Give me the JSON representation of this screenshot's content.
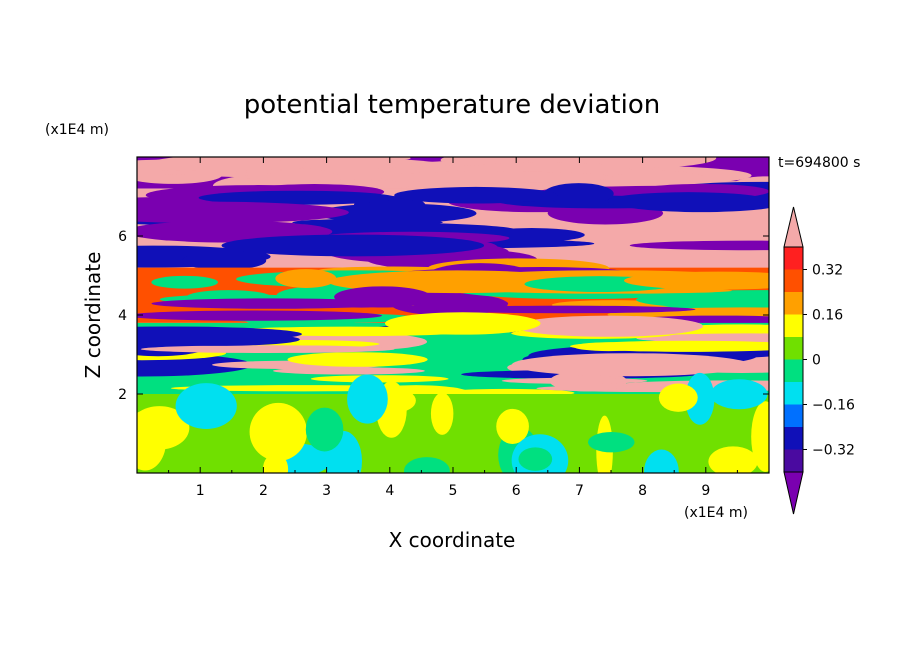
{
  "chart_data": {
    "type": "heatmap",
    "title": "potential temperature deviation",
    "time_label": "t=694800 s",
    "xlabel": "X coordinate",
    "ylabel": "Z coordinate",
    "x_unit": "(x1E4 m)",
    "y_unit": "(x1E4 m)",
    "xlim": [
      0,
      10
    ],
    "ylim": [
      0,
      8
    ],
    "x_ticks": [
      "1",
      "2",
      "3",
      "4",
      "5",
      "6",
      "7",
      "8",
      "9"
    ],
    "y_ticks": [
      "2",
      "4",
      "6"
    ],
    "colorbar": {
      "levels": [
        -0.4,
        -0.32,
        -0.24,
        -0.16,
        -0.08,
        0,
        0.08,
        0.16,
        0.24,
        0.32,
        0.4
      ],
      "tick_labels": [
        "0.32",
        "0.16",
        "0",
        "−0.16",
        "−0.32"
      ],
      "tick_values": [
        0.32,
        0.16,
        0,
        -0.16,
        -0.32
      ],
      "colors": [
        "#7a00b0",
        "#4a0aa0",
        "#1010b8",
        "#0070ff",
        "#00e0f0",
        "#00e080",
        "#70e000",
        "#ffff00",
        "#ffa000",
        "#ff5000",
        "#ff2020",
        "#f4a9a9"
      ],
      "extend": "both"
    },
    "field": [
      {
        "z": [
          7.2,
          8.0
        ],
        "level": "high",
        "colors": [
          "#7a00b0",
          "#f4a9a9"
        ]
      },
      {
        "z": [
          5.2,
          7.2
        ],
        "level": "high",
        "colors": [
          "#f4a9a9",
          "#7a00b0",
          "#1010b8"
        ]
      },
      {
        "z": [
          3.8,
          5.2
        ],
        "level": "mixed",
        "colors": [
          "#ff5000",
          "#ffa000",
          "#00e080",
          "#7a00b0"
        ]
      },
      {
        "z": [
          2.0,
          3.8
        ],
        "level": "mixed",
        "colors": [
          "#00e080",
          "#ffff00",
          "#1010b8",
          "#f4a9a9"
        ]
      },
      {
        "z": [
          0.0,
          2.0
        ],
        "level": "low",
        "colors": [
          "#70e000",
          "#00e080",
          "#ffff00",
          "#00e0f0"
        ]
      }
    ]
  }
}
